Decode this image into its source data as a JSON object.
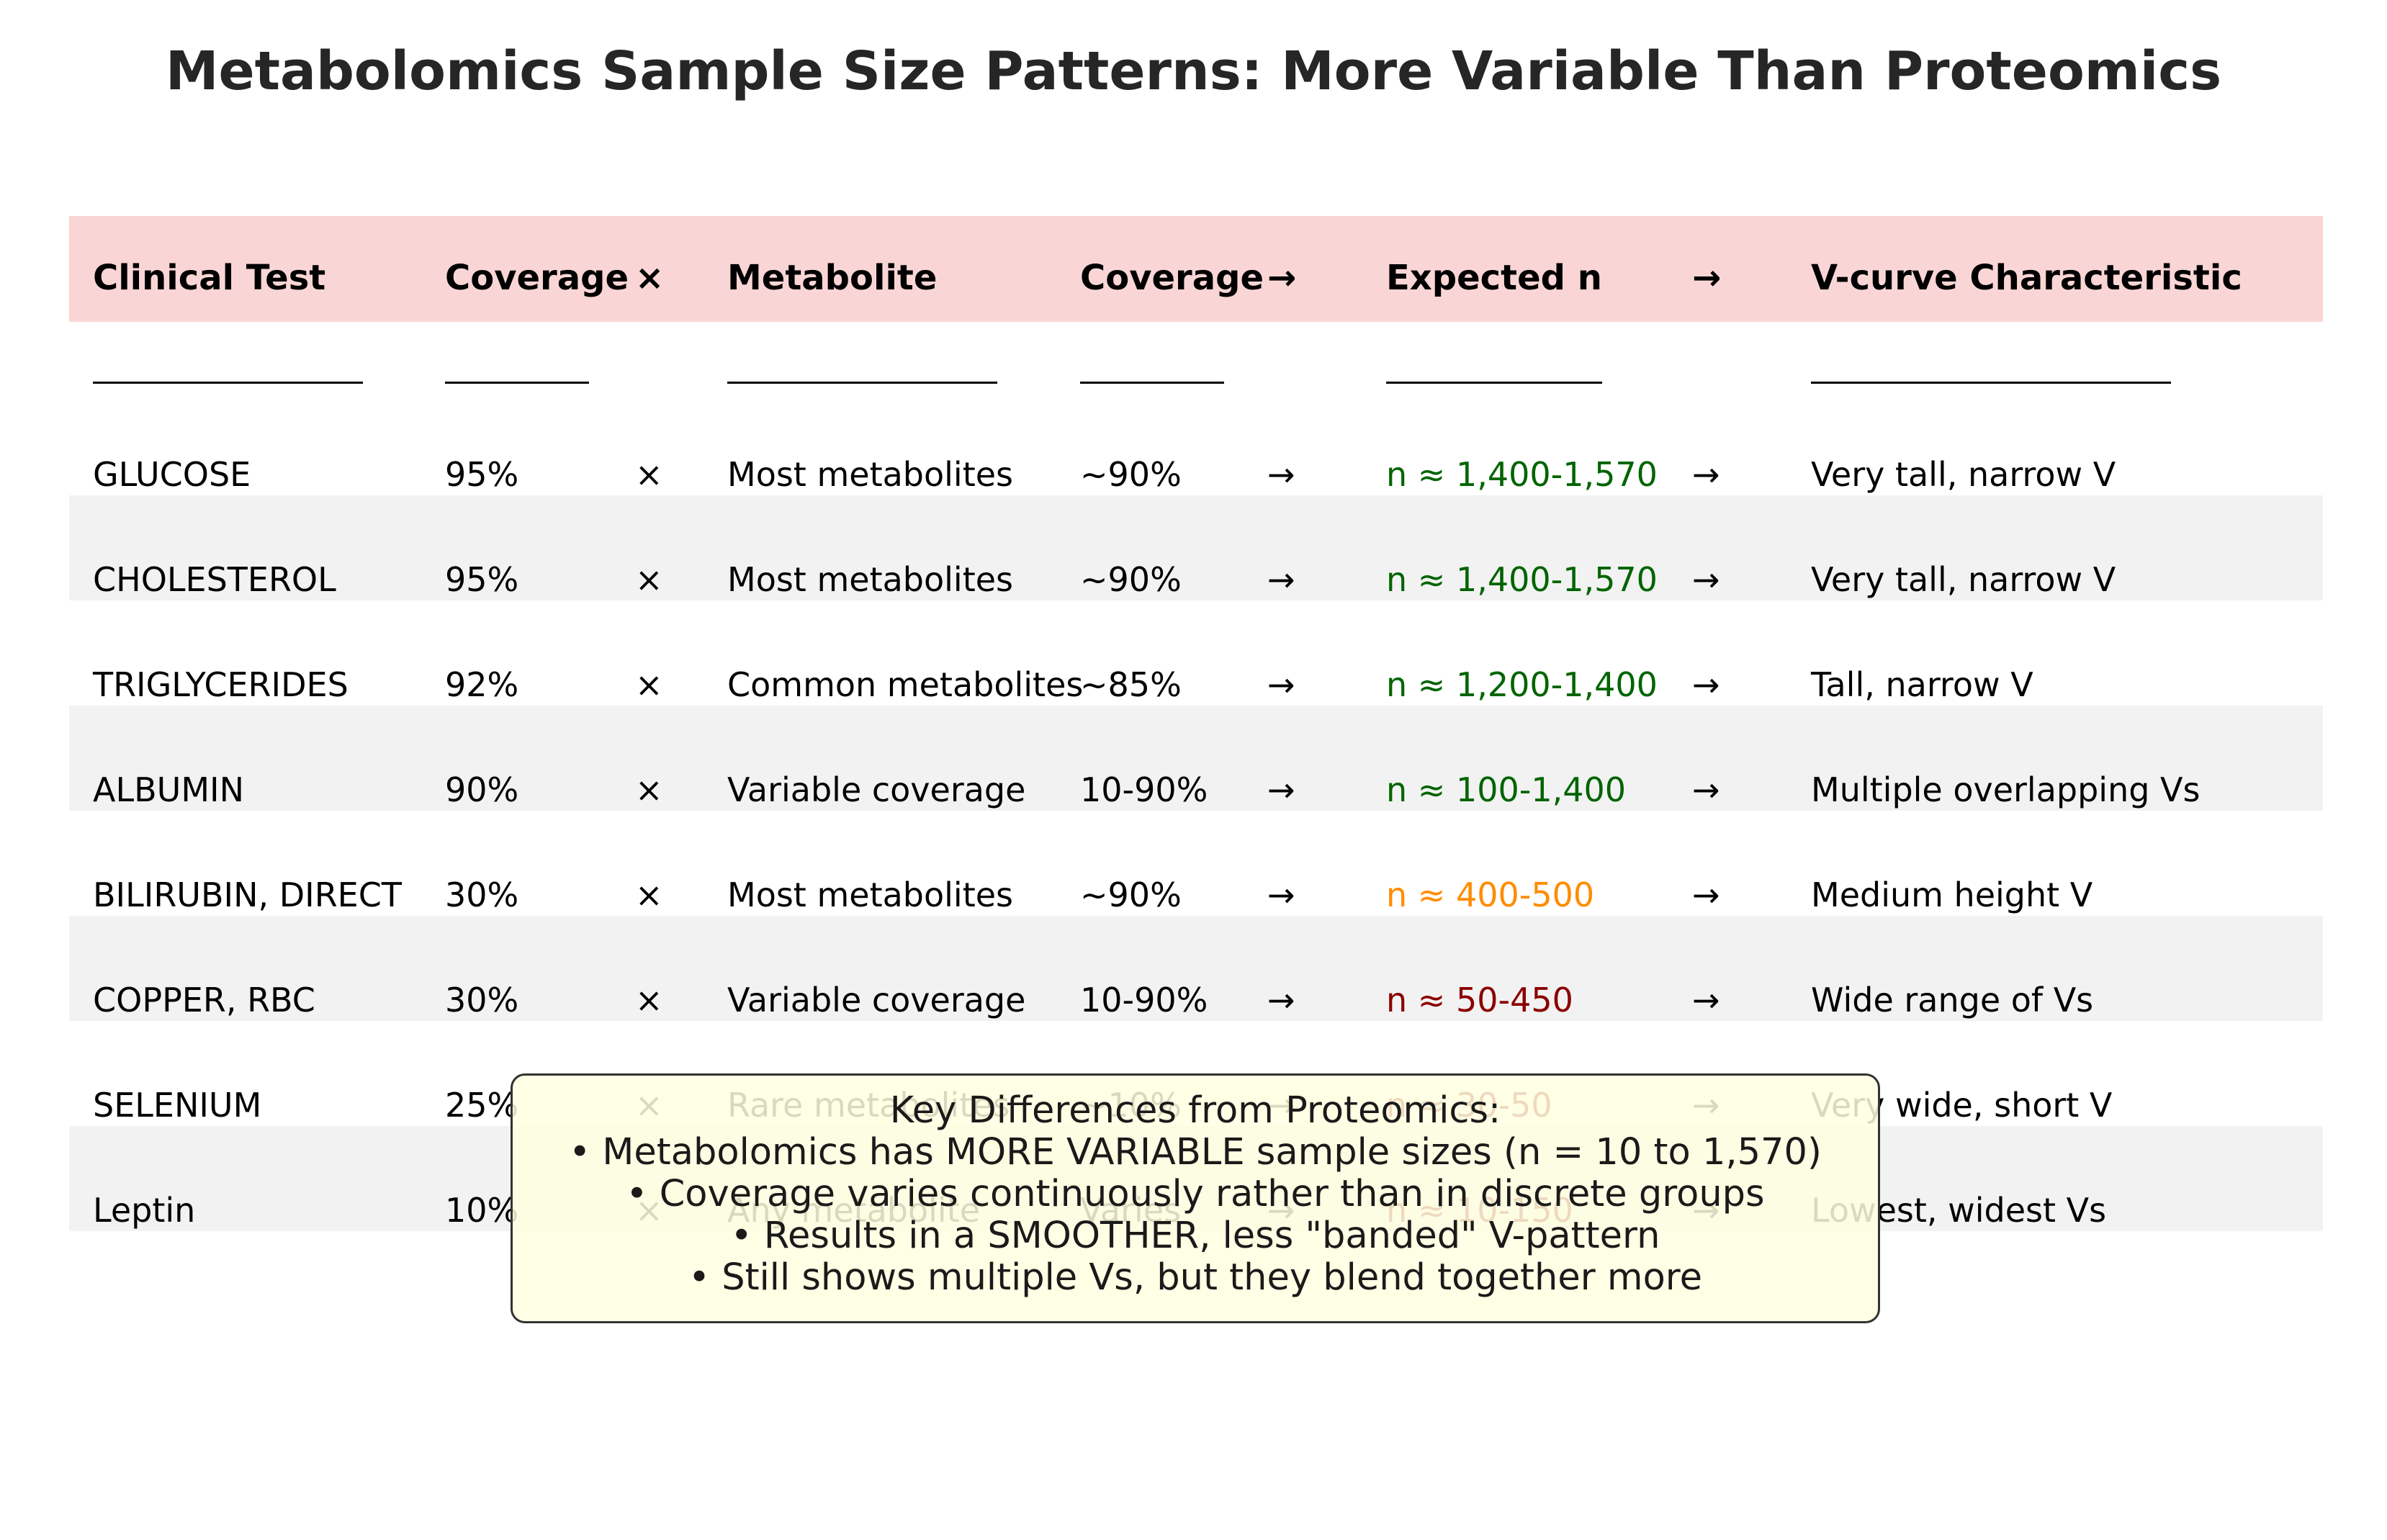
{
  "chart_data": {
    "type": "table",
    "title": "Metabolomics Sample Size Patterns: More Variable Than Proteomics",
    "columns": [
      "Clinical Test",
      "Coverage",
      "×",
      "Metabolite",
      "Coverage",
      "→",
      "Expected n",
      "→",
      "V-curve Characteristic"
    ],
    "rows": [
      {
        "test": "GLUCOSE",
        "coverage": "95%",
        "times": "×",
        "metabolite": "Most metabolites",
        "met_coverage": "~90%",
        "arrow1": "→",
        "n": "n ≈ 1,400-1,570",
        "arrow2": "→",
        "vcurve": "Very tall, narrow V",
        "n_color": "#006400"
      },
      {
        "test": "CHOLESTEROL",
        "coverage": "95%",
        "times": "×",
        "metabolite": "Most metabolites",
        "met_coverage": "~90%",
        "arrow1": "→",
        "n": "n ≈ 1,400-1,570",
        "arrow2": "→",
        "vcurve": "Very tall, narrow V",
        "n_color": "#006400"
      },
      {
        "test": "TRIGLYCERIDES",
        "coverage": "92%",
        "times": "×",
        "metabolite": "Common metabolites",
        "met_coverage": "~85%",
        "arrow1": "→",
        "n": "n ≈ 1,200-1,400",
        "arrow2": "→",
        "vcurve": "Tall, narrow V",
        "n_color": "#006400"
      },
      {
        "test": "ALBUMIN",
        "coverage": "90%",
        "times": "×",
        "metabolite": "Variable coverage",
        "met_coverage": "10-90%",
        "arrow1": "→",
        "n": "n ≈ 100-1,400",
        "arrow2": "→",
        "vcurve": "Multiple overlapping Vs",
        "n_color": "#006400"
      },
      {
        "test": "BILIRUBIN, DIRECT",
        "coverage": "30%",
        "times": "×",
        "metabolite": "Most metabolites",
        "met_coverage": "~90%",
        "arrow1": "→",
        "n": "n ≈ 400-500",
        "arrow2": "→",
        "vcurve": "Medium height V",
        "n_color": "#ff8c00"
      },
      {
        "test": "COPPER, RBC",
        "coverage": "30%",
        "times": "×",
        "metabolite": "Variable coverage",
        "met_coverage": "10-90%",
        "arrow1": "→",
        "n": "n ≈ 50-450",
        "arrow2": "→",
        "vcurve": "Wide range of Vs",
        "n_color": "#8b0000"
      },
      {
        "test": "SELENIUM",
        "coverage": "25%",
        "times": "×",
        "metabolite": "Rare metabolites",
        "met_coverage": "~10%",
        "arrow1": "→",
        "n": "n ≈ 30-50",
        "arrow2": "→",
        "vcurve": "Very wide, short V",
        "n_color": "#8b0000"
      },
      {
        "test": "Leptin",
        "coverage": "10%",
        "times": "×",
        "metabolite": "Any metabolite",
        "met_coverage": "Varies",
        "arrow1": "→",
        "n": "n ≈ 10-150",
        "arrow2": "→",
        "vcurve": "Lowest, widest Vs",
        "n_color": "#8b0000"
      }
    ],
    "legend_lines": [
      "Key Differences from Proteomics:",
      "• Metabolomics has MORE VARIABLE sample sizes (n = 10 to 1,570)",
      "• Coverage varies continuously rather than in discrete groups",
      "• Results in a SMOOTHER, less \"banded\" V-pattern",
      "• Still shows multiple Vs, but they blend together more"
    ],
    "colors": {
      "header_band": "#f9d6d5",
      "alt_row_band": "#f2f2f2",
      "high_n": "#006400",
      "medium_n": "#ff8c00",
      "low_n": "#8b0000",
      "legend_fill": "#ffffe0"
    }
  }
}
